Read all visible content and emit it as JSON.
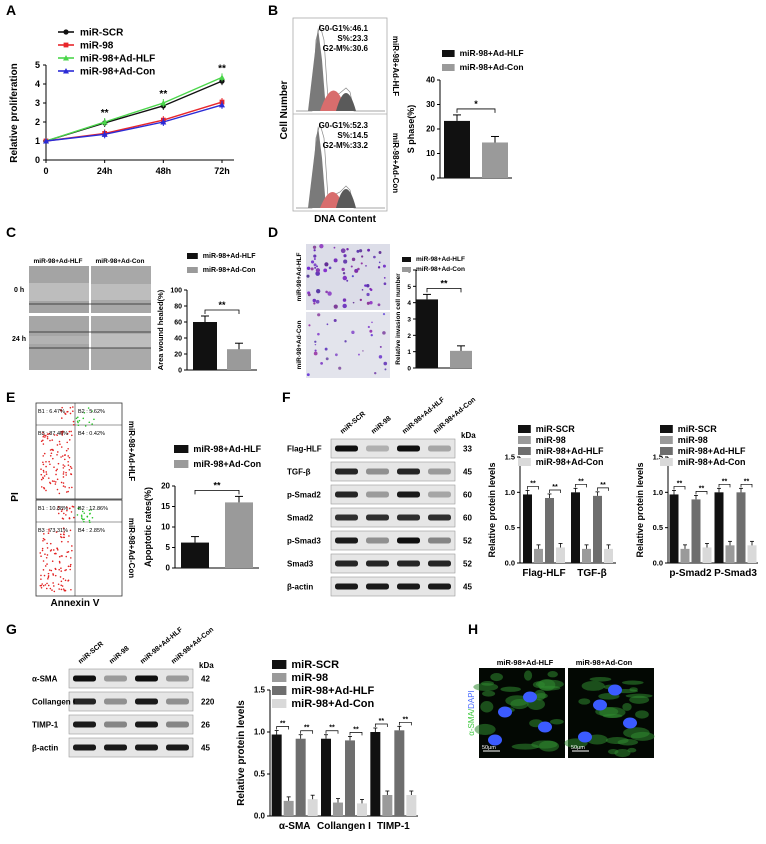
{
  "panels": {
    "A": "A",
    "B": "B",
    "C": "C",
    "D": "D",
    "E": "E",
    "F": "F",
    "G": "G",
    "H": "H"
  },
  "colors": {
    "scr": "#111111",
    "mir98": "#e8262b",
    "hlf": "#4bd64b",
    "con": "#2b2bd6",
    "bar_black": "#111111",
    "bar_gray": "#9a9a9a",
    "bar_dark": "#6e6e6e",
    "bar_light": "#d9d9d9"
  },
  "chart_data": [
    {
      "id": "A",
      "type": "line",
      "x": [
        "0",
        "24h",
        "48h",
        "72h"
      ],
      "ylabel": "Relative proliferation",
      "ylim": [
        0,
        5
      ],
      "yticks": [
        "0",
        "1",
        "2",
        "3",
        "4",
        "5"
      ],
      "series": [
        {
          "name": "miR-SCR",
          "values": [
            1.0,
            1.95,
            2.85,
            4.15
          ]
        },
        {
          "name": "miR-98",
          "values": [
            1.0,
            1.4,
            2.1,
            3.05
          ]
        },
        {
          "name": "miR-98+Ad-HLF",
          "values": [
            1.0,
            2.0,
            3.0,
            4.35
          ]
        },
        {
          "name": "miR-98+Ad-Con",
          "values": [
            1.0,
            1.35,
            2.0,
            2.9
          ]
        }
      ],
      "annotations": [
        "**",
        "**",
        "**"
      ]
    },
    {
      "id": "B-flow",
      "type": "histogram",
      "ylabel": "Cell Number",
      "xlabel": "DNA Content",
      "plots": [
        {
          "label": "miR-98+Ad-HLF",
          "stats": [
            "G0-G1%:46.1",
            "S%:23.3",
            "G2-M%:30.6"
          ]
        },
        {
          "label": "miR-98+Ad-Con",
          "stats": [
            "G0-G1%:52.3",
            "S%:14.5",
            "G2-M%:33.2"
          ]
        }
      ]
    },
    {
      "id": "B",
      "type": "bar",
      "categories": [
        "miR-98+Ad-HLF",
        "miR-98+Ad-Con"
      ],
      "values": [
        23.3,
        14.5
      ],
      "ylabel": "S phase(%)",
      "ylim": [
        0,
        40
      ],
      "yticks": [
        "0",
        "10",
        "20",
        "30",
        "40"
      ],
      "significance": "*"
    },
    {
      "id": "C",
      "type": "bar",
      "categories": [
        "miR-98+Ad-HLF",
        "miR-98+Ad-Con"
      ],
      "values": [
        60,
        26
      ],
      "ylabel": "Area wound healed(%)",
      "ylim": [
        0,
        100
      ],
      "yticks": [
        "0",
        "20",
        "40",
        "60",
        "80",
        "100"
      ],
      "significance": "**",
      "image_labels": {
        "cols": [
          "miR-98+Ad-HLF",
          "miR-98+Ad-Con"
        ],
        "rows": [
          "0 h",
          "24 h"
        ]
      }
    },
    {
      "id": "D",
      "type": "bar",
      "categories": [
        "miR-98+Ad-HLF",
        "miR-98+Ad-Con"
      ],
      "values": [
        4.2,
        1.05
      ],
      "ylabel": "Relative invasion cell number",
      "ylim": [
        0,
        6
      ],
      "yticks": [
        "0",
        "1",
        "2",
        "3",
        "4",
        "5",
        "6"
      ],
      "significance": "**",
      "image_labels": [
        "miR-98+Ad-HLF",
        "miR-98+Ad-Con"
      ]
    },
    {
      "id": "E-flow",
      "type": "scatter",
      "ylabel": "PI",
      "xlabel": "Annexin V",
      "plots": [
        {
          "label": "miR-98+Ad-HLF",
          "quadrants": [
            "B1 : 6.47%",
            "B2 : 5.62%",
            "B3 : 87.46%",
            "B4 : 0.42%"
          ]
        },
        {
          "label": "miR-98+Ad-Con",
          "quadrants": [
            "B1 : 10.88%",
            "B2 : 12.86%",
            "B3 : 73.31%",
            "B4 : 2.85%"
          ]
        }
      ]
    },
    {
      "id": "E",
      "type": "bar",
      "categories": [
        "miR-98+Ad-HLF",
        "miR-98+Ad-Con"
      ],
      "values": [
        6.2,
        16
      ],
      "ylabel": "Apoptotic rates(%)",
      "ylim": [
        0,
        20
      ],
      "yticks": [
        "0",
        "5",
        "10",
        "15",
        "20"
      ],
      "significance": "**"
    },
    {
      "id": "F1",
      "type": "bar",
      "categories": [
        "Flag-HLF",
        "TGF-β"
      ],
      "series": [
        {
          "name": "miR-SCR",
          "values": [
            0.97,
            1.0
          ]
        },
        {
          "name": "miR-98",
          "values": [
            0.2,
            0.2
          ]
        },
        {
          "name": "miR-98+Ad-HLF",
          "values": [
            0.92,
            0.95
          ]
        },
        {
          "name": "miR-98+Ad-Con",
          "values": [
            0.22,
            0.2
          ]
        }
      ],
      "ylabel": "Relative protein levels",
      "ylim": [
        0,
        1.5
      ],
      "yticks": [
        "0.0",
        "0.5",
        "1.0",
        "1.5"
      ]
    },
    {
      "id": "F2",
      "type": "bar",
      "categories": [
        "p-Smad2",
        "P-Smad3"
      ],
      "series": [
        {
          "name": "miR-SCR",
          "values": [
            0.97,
            1.0
          ]
        },
        {
          "name": "miR-98",
          "values": [
            0.2,
            0.25
          ]
        },
        {
          "name": "miR-98+Ad-HLF",
          "values": [
            0.9,
            1.0
          ]
        },
        {
          "name": "miR-98+Ad-Con",
          "values": [
            0.22,
            0.25
          ]
        }
      ],
      "ylabel": "Relative protein levels",
      "ylim": [
        0,
        1.5
      ],
      "yticks": [
        "0.0",
        "0.5",
        "1.0",
        "1.5"
      ]
    },
    {
      "id": "G",
      "type": "bar",
      "categories": [
        "α-SMA",
        "Collangen I",
        "TIMP-1"
      ],
      "series": [
        {
          "name": "miR-SCR",
          "values": [
            0.97,
            0.92,
            1.0
          ]
        },
        {
          "name": "miR-98",
          "values": [
            0.18,
            0.16,
            0.25
          ]
        },
        {
          "name": "miR-98+Ad-HLF",
          "values": [
            0.92,
            0.9,
            1.02
          ]
        },
        {
          "name": "miR-98+Ad-Con",
          "values": [
            0.2,
            0.15,
            0.25
          ]
        }
      ],
      "ylabel": "Relative protein levels",
      "ylim": [
        0,
        1.5
      ],
      "yticks": [
        "0.0",
        "0.5",
        "1.0",
        "1.5"
      ]
    }
  ],
  "blots": {
    "F": {
      "lanes": [
        "miR-SCR",
        "miR-98",
        "miR-98+Ad-HLF",
        "miR-98+Ad-Con"
      ],
      "kda_label": "kDa",
      "rows": [
        {
          "name": "Flag-HLF",
          "kda": "33"
        },
        {
          "name": "TGF-β",
          "kda": "45"
        },
        {
          "name": "p-Smad2",
          "kda": "60"
        },
        {
          "name": "Smad2",
          "kda": "60"
        },
        {
          "name": "p-Smad3",
          "kda": "52"
        },
        {
          "name": "Smad3",
          "kda": "52"
        },
        {
          "name": "β-actin",
          "kda": "45"
        }
      ]
    },
    "G": {
      "lanes": [
        "miR-SCR",
        "miR-98",
        "miR-98+Ad-HLF",
        "miR-98+Ad-Con"
      ],
      "kda_label": "kDa",
      "rows": [
        {
          "name": "α-SMA",
          "kda": "42"
        },
        {
          "name": "Collangen I",
          "kda": "220"
        },
        {
          "name": "TIMP-1",
          "kda": "26"
        },
        {
          "name": "β-actin",
          "kda": "45"
        }
      ]
    }
  },
  "H": {
    "labels": [
      "miR-98+Ad-HLF",
      "miR-98+Ad-Con"
    ],
    "stain_green": "α-SMA",
    "stain_sep": "/",
    "stain_blue": "DAPI",
    "scale": "50μm"
  }
}
